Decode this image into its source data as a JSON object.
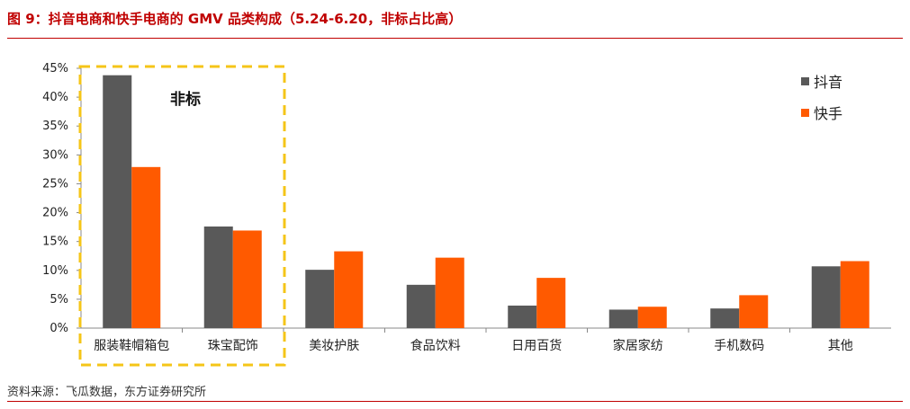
{
  "title": "图 9：抖音电商和快手电商的 GMV 品类构成（5.24-6.20，非标占比高）",
  "source": "资料来源：飞瓜数据，东方证券研究所",
  "colors": {
    "douyin": "#595959",
    "kuaishou": "#ff5a00",
    "highlight": "#f5c518",
    "rule": "#c00000"
  },
  "chart_data": {
    "type": "bar",
    "categories": [
      "服装鞋帽箱包",
      "珠宝配饰",
      "美妆护肤",
      "食品饮料",
      "日用百货",
      "家居家纺",
      "手机数码",
      "其他"
    ],
    "series": [
      {
        "name": "抖音",
        "values": [
          43.8,
          17.6,
          10.1,
          7.5,
          3.9,
          3.2,
          3.4,
          10.7
        ]
      },
      {
        "name": "快手",
        "values": [
          27.9,
          16.9,
          13.3,
          12.2,
          8.7,
          3.7,
          5.7,
          11.6
        ]
      }
    ],
    "ylim": [
      0,
      45
    ],
    "yticks": [
      0,
      5,
      10,
      15,
      20,
      25,
      30,
      35,
      40,
      45
    ],
    "ytick_labels": [
      "0%",
      "5%",
      "10%",
      "15%",
      "20%",
      "25%",
      "30%",
      "35%",
      "40%",
      "45%"
    ],
    "legend_position": "top-right",
    "annotation": {
      "text": "非标",
      "highlight_categories": [
        "服装鞋帽箱包",
        "珠宝配饰"
      ]
    }
  }
}
